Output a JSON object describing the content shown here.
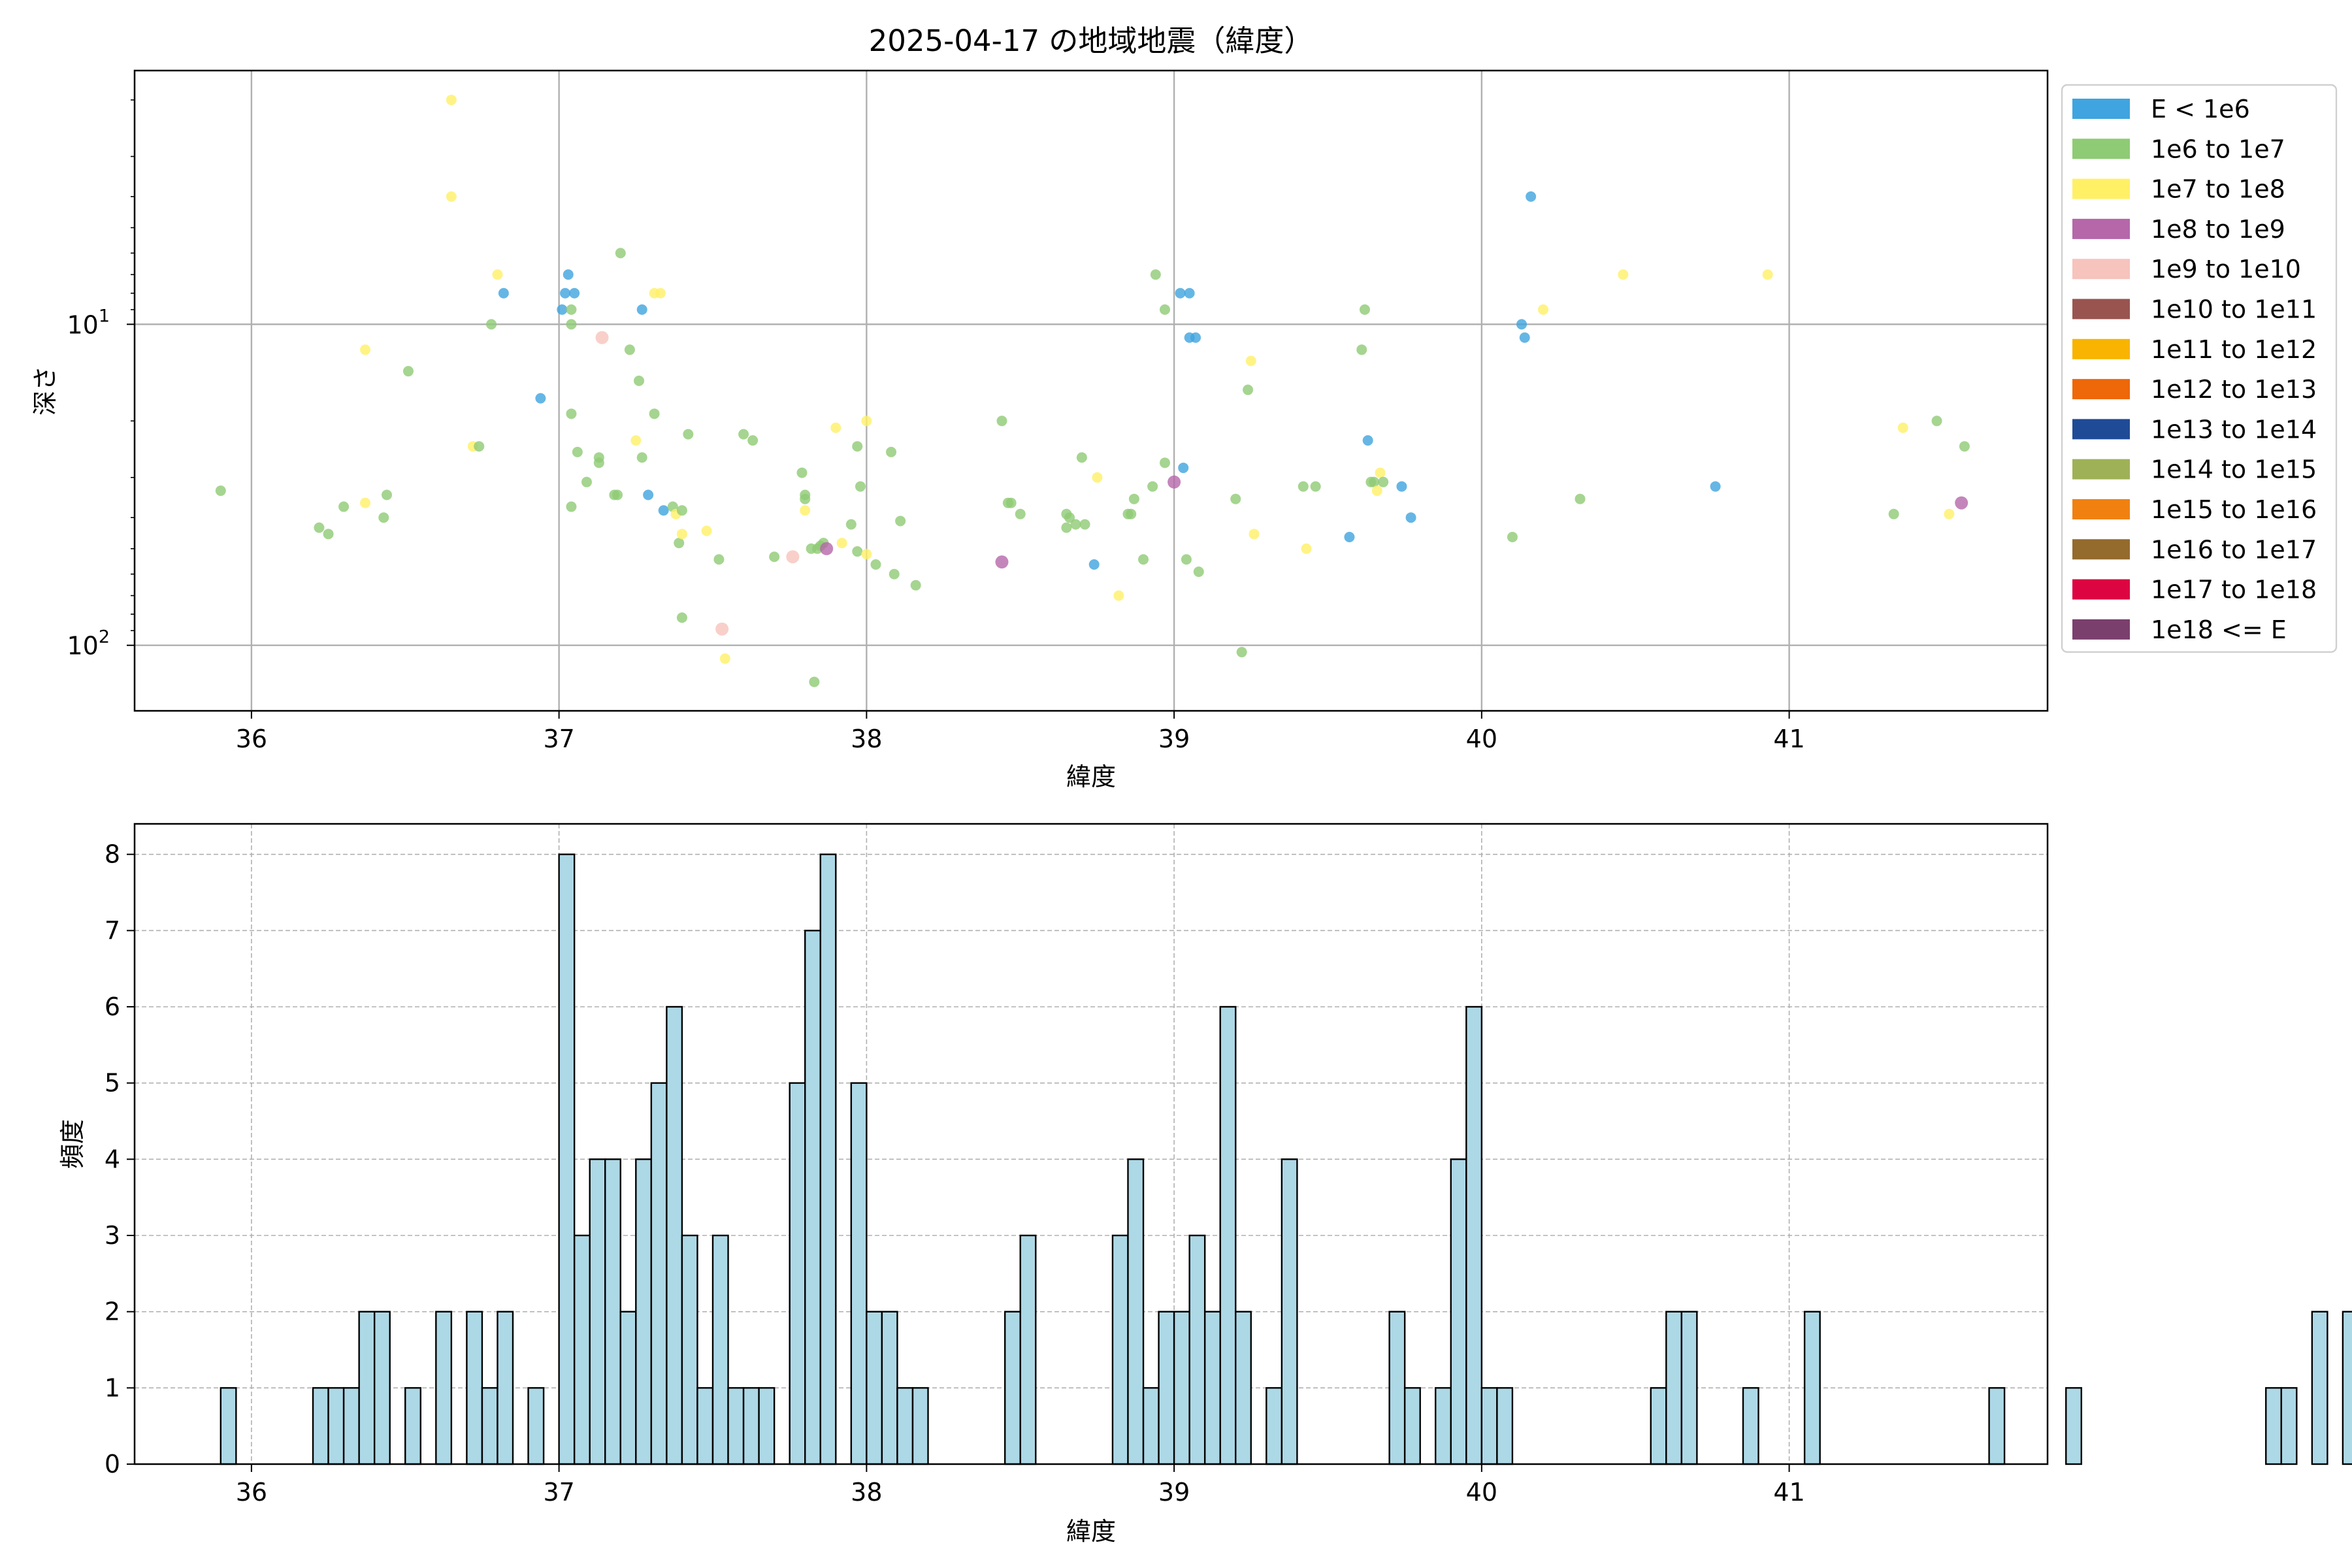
{
  "chart_data": [
    {
      "type": "scatter",
      "title": "2025-04-17 の地域地震（緯度）",
      "xlabel": "緯度",
      "ylabel": "深さ",
      "xlim": [
        35.62,
        41.84
      ],
      "ylim": [
        160,
        1.62
      ],
      "yscale": "log",
      "y_inverted": true,
      "grid": true,
      "x_ticks": [
        "36",
        "37",
        "38",
        "39",
        "40",
        "41"
      ],
      "y_ticks": [
        {
          "label": "10",
          "exp": "1"
        },
        {
          "label": "10",
          "exp": "2"
        }
      ],
      "legend_position": "outside-right",
      "legend": [
        {
          "label": "E < 1e6",
          "color": "#3fa4df"
        },
        {
          "label": "1e6 to 1e7",
          "color": "#8fcb74"
        },
        {
          "label": "1e7 to 1e8",
          "color": "#fff066"
        },
        {
          "label": "1e8 to 1e9",
          "color": "#b567aa"
        },
        {
          "label": "1e9 to 1e10",
          "color": "#f7c3bd"
        },
        {
          "label": "1e10 to 1e11",
          "color": "#995450"
        },
        {
          "label": "1e11 to 1e12",
          "color": "#f8b400"
        },
        {
          "label": "1e12 to 1e13",
          "color": "#ee6708"
        },
        {
          "label": "1e13 to 1e14",
          "color": "#1f4b96"
        },
        {
          "label": "1e14 to 1e15",
          "color": "#9fb157"
        },
        {
          "label": "1e15 to 1e16",
          "color": "#f08111"
        },
        {
          "label": "1e16 to 1e17",
          "color": "#946a2d"
        },
        {
          "label": "1e17 to 1e18",
          "color": "#dc0542"
        },
        {
          "label": "1e18 <= E",
          "color": "#7b3f6d"
        }
      ],
      "points": [
        {
          "x": 35.9,
          "y": 33,
          "c": 1
        },
        {
          "x": 36.22,
          "y": 43,
          "c": 1
        },
        {
          "x": 36.25,
          "y": 45,
          "c": 1
        },
        {
          "x": 36.3,
          "y": 37,
          "c": 1
        },
        {
          "x": 36.43,
          "y": 40,
          "c": 1
        },
        {
          "x": 36.44,
          "y": 34,
          "c": 1
        },
        {
          "x": 36.51,
          "y": 14,
          "c": 1
        },
        {
          "x": 36.37,
          "y": 12,
          "c": 2
        },
        {
          "x": 36.37,
          "y": 36,
          "c": 2
        },
        {
          "x": 36.65,
          "y": 2,
          "c": 2
        },
        {
          "x": 36.65,
          "y": 4,
          "c": 2
        },
        {
          "x": 36.72,
          "y": 24,
          "c": 2
        },
        {
          "x": 36.74,
          "y": 24,
          "c": 1
        },
        {
          "x": 36.78,
          "y": 10,
          "c": 1
        },
        {
          "x": 36.8,
          "y": 7,
          "c": 2
        },
        {
          "x": 36.82,
          "y": 8,
          "c": 0
        },
        {
          "x": 36.94,
          "y": 17,
          "c": 0
        },
        {
          "x": 37.01,
          "y": 9,
          "c": 0
        },
        {
          "x": 37.02,
          "y": 8,
          "c": 0
        },
        {
          "x": 37.03,
          "y": 7,
          "c": 0
        },
        {
          "x": 37.04,
          "y": 9,
          "c": 1
        },
        {
          "x": 37.04,
          "y": 10,
          "c": 1
        },
        {
          "x": 37.04,
          "y": 19,
          "c": 1
        },
        {
          "x": 37.04,
          "y": 37,
          "c": 1
        },
        {
          "x": 37.05,
          "y": 8,
          "c": 0
        },
        {
          "x": 37.06,
          "y": 25,
          "c": 1
        },
        {
          "x": 37.09,
          "y": 31,
          "c": 1
        },
        {
          "x": 37.13,
          "y": 27,
          "c": 1
        },
        {
          "x": 37.13,
          "y": 26,
          "c": 1
        },
        {
          "x": 37.14,
          "y": 11,
          "c": 4
        },
        {
          "x": 37.18,
          "y": 34,
          "c": 1
        },
        {
          "x": 37.19,
          "y": 34,
          "c": 1
        },
        {
          "x": 37.2,
          "y": 6,
          "c": 1
        },
        {
          "x": 37.23,
          "y": 12,
          "c": 1
        },
        {
          "x": 37.25,
          "y": 23,
          "c": 2
        },
        {
          "x": 37.26,
          "y": 15,
          "c": 1
        },
        {
          "x": 37.27,
          "y": 26,
          "c": 1
        },
        {
          "x": 37.27,
          "y": 9,
          "c": 0
        },
        {
          "x": 37.29,
          "y": 34,
          "c": 0
        },
        {
          "x": 37.31,
          "y": 8,
          "c": 2
        },
        {
          "x": 37.31,
          "y": 19,
          "c": 1
        },
        {
          "x": 37.33,
          "y": 8,
          "c": 2
        },
        {
          "x": 37.34,
          "y": 38,
          "c": 0
        },
        {
          "x": 37.37,
          "y": 37,
          "c": 1
        },
        {
          "x": 37.38,
          "y": 39,
          "c": 2
        },
        {
          "x": 37.39,
          "y": 48,
          "c": 1
        },
        {
          "x": 37.4,
          "y": 45,
          "c": 2
        },
        {
          "x": 37.4,
          "y": 38,
          "c": 1
        },
        {
          "x": 37.4,
          "y": 82,
          "c": 1
        },
        {
          "x": 37.42,
          "y": 22,
          "c": 1
        },
        {
          "x": 37.48,
          "y": 44,
          "c": 2
        },
        {
          "x": 37.52,
          "y": 54,
          "c": 1
        },
        {
          "x": 37.53,
          "y": 89,
          "c": 4
        },
        {
          "x": 37.54,
          "y": 110,
          "c": 2
        },
        {
          "x": 37.6,
          "y": 22,
          "c": 1
        },
        {
          "x": 37.63,
          "y": 23,
          "c": 1
        },
        {
          "x": 37.7,
          "y": 53,
          "c": 1
        },
        {
          "x": 37.76,
          "y": 53,
          "c": 4
        },
        {
          "x": 37.79,
          "y": 29,
          "c": 1
        },
        {
          "x": 37.8,
          "y": 34,
          "c": 1
        },
        {
          "x": 37.8,
          "y": 35,
          "c": 1
        },
        {
          "x": 37.8,
          "y": 38,
          "c": 2
        },
        {
          "x": 37.82,
          "y": 50,
          "c": 1
        },
        {
          "x": 37.83,
          "y": 130,
          "c": 1
        },
        {
          "x": 37.84,
          "y": 50,
          "c": 1
        },
        {
          "x": 37.85,
          "y": 49,
          "c": 1
        },
        {
          "x": 37.86,
          "y": 48,
          "c": 1
        },
        {
          "x": 37.87,
          "y": 50,
          "c": 3
        },
        {
          "x": 37.9,
          "y": 21,
          "c": 2
        },
        {
          "x": 37.92,
          "y": 48,
          "c": 2
        },
        {
          "x": 37.95,
          "y": 42,
          "c": 1
        },
        {
          "x": 37.97,
          "y": 24,
          "c": 1
        },
        {
          "x": 37.97,
          "y": 51,
          "c": 1
        },
        {
          "x": 37.98,
          "y": 32,
          "c": 1
        },
        {
          "x": 38.0,
          "y": 20,
          "c": 2
        },
        {
          "x": 38.0,
          "y": 52,
          "c": 2
        },
        {
          "x": 38.03,
          "y": 56,
          "c": 1
        },
        {
          "x": 38.08,
          "y": 25,
          "c": 1
        },
        {
          "x": 38.09,
          "y": 60,
          "c": 1
        },
        {
          "x": 38.11,
          "y": 41,
          "c": 1
        },
        {
          "x": 38.16,
          "y": 65,
          "c": 1
        },
        {
          "x": 38.44,
          "y": 20,
          "c": 1
        },
        {
          "x": 38.44,
          "y": 55,
          "c": 3
        },
        {
          "x": 38.46,
          "y": 36,
          "c": 1
        },
        {
          "x": 38.47,
          "y": 36,
          "c": 1
        },
        {
          "x": 38.5,
          "y": 39,
          "c": 1
        },
        {
          "x": 38.65,
          "y": 39,
          "c": 1
        },
        {
          "x": 38.65,
          "y": 43,
          "c": 1
        },
        {
          "x": 38.66,
          "y": 40,
          "c": 1
        },
        {
          "x": 38.68,
          "y": 42,
          "c": 1
        },
        {
          "x": 38.7,
          "y": 26,
          "c": 1
        },
        {
          "x": 38.71,
          "y": 42,
          "c": 1
        },
        {
          "x": 38.74,
          "y": 56,
          "c": 0
        },
        {
          "x": 38.75,
          "y": 30,
          "c": 2
        },
        {
          "x": 38.82,
          "y": 70,
          "c": 2
        },
        {
          "x": 38.85,
          "y": 39,
          "c": 1
        },
        {
          "x": 38.86,
          "y": 39,
          "c": 1
        },
        {
          "x": 38.87,
          "y": 35,
          "c": 1
        },
        {
          "x": 38.9,
          "y": 54,
          "c": 1
        },
        {
          "x": 38.93,
          "y": 32,
          "c": 1
        },
        {
          "x": 38.94,
          "y": 7,
          "c": 1
        },
        {
          "x": 38.97,
          "y": 27,
          "c": 1
        },
        {
          "x": 38.97,
          "y": 9,
          "c": 1
        },
        {
          "x": 39.0,
          "y": 31,
          "c": 3
        },
        {
          "x": 39.02,
          "y": 8,
          "c": 0
        },
        {
          "x": 39.03,
          "y": 28,
          "c": 0
        },
        {
          "x": 39.04,
          "y": 54,
          "c": 1
        },
        {
          "x": 39.05,
          "y": 8,
          "c": 0
        },
        {
          "x": 39.05,
          "y": 11,
          "c": 0
        },
        {
          "x": 39.07,
          "y": 11,
          "c": 0
        },
        {
          "x": 39.08,
          "y": 59,
          "c": 1
        },
        {
          "x": 39.2,
          "y": 35,
          "c": 1
        },
        {
          "x": 39.22,
          "y": 105,
          "c": 1
        },
        {
          "x": 39.24,
          "y": 16,
          "c": 1
        },
        {
          "x": 39.25,
          "y": 13,
          "c": 2
        },
        {
          "x": 39.26,
          "y": 45,
          "c": 2
        },
        {
          "x": 39.42,
          "y": 32,
          "c": 1
        },
        {
          "x": 39.43,
          "y": 50,
          "c": 2
        },
        {
          "x": 39.46,
          "y": 32,
          "c": 1
        },
        {
          "x": 39.57,
          "y": 46,
          "c": 0
        },
        {
          "x": 39.61,
          "y": 12,
          "c": 1
        },
        {
          "x": 39.62,
          "y": 9,
          "c": 1
        },
        {
          "x": 39.63,
          "y": 23,
          "c": 0
        },
        {
          "x": 39.64,
          "y": 31,
          "c": 1
        },
        {
          "x": 39.65,
          "y": 31,
          "c": 1
        },
        {
          "x": 39.66,
          "y": 33,
          "c": 2
        },
        {
          "x": 39.67,
          "y": 29,
          "c": 2
        },
        {
          "x": 39.68,
          "y": 31,
          "c": 1
        },
        {
          "x": 39.74,
          "y": 32,
          "c": 0
        },
        {
          "x": 39.77,
          "y": 40,
          "c": 0
        },
        {
          "x": 40.1,
          "y": 46,
          "c": 1
        },
        {
          "x": 40.13,
          "y": 10,
          "c": 0
        },
        {
          "x": 40.14,
          "y": 11,
          "c": 0
        },
        {
          "x": 40.16,
          "y": 4,
          "c": 0
        },
        {
          "x": 40.2,
          "y": 9,
          "c": 2
        },
        {
          "x": 40.32,
          "y": 35,
          "c": 1
        },
        {
          "x": 40.46,
          "y": 7,
          "c": 2
        },
        {
          "x": 40.76,
          "y": 32,
          "c": 0
        },
        {
          "x": 40.93,
          "y": 7,
          "c": 2
        },
        {
          "x": 41.34,
          "y": 39,
          "c": 1
        },
        {
          "x": 41.37,
          "y": 21,
          "c": 2
        },
        {
          "x": 41.48,
          "y": 20,
          "c": 1
        },
        {
          "x": 41.52,
          "y": 39,
          "c": 2
        },
        {
          "x": 41.57,
          "y": 24,
          "c": 1
        },
        {
          "x": 41.56,
          "y": 36,
          "c": 3
        }
      ]
    },
    {
      "type": "bar",
      "title": "",
      "xlabel": "緯度",
      "ylabel": "頻度",
      "xlim": [
        35.62,
        41.84
      ],
      "ylim": [
        0,
        8.4
      ],
      "grid": true,
      "bar_color": "#add8e6",
      "x_ticks": [
        "36",
        "37",
        "38",
        "39",
        "40",
        "41"
      ],
      "y_ticks": [
        "0",
        "1",
        "2",
        "3",
        "4",
        "5",
        "6",
        "7",
        "8"
      ],
      "bin_start": 35.9,
      "bin_width": 0.05,
      "values": [
        1,
        0,
        0,
        0,
        0,
        0,
        1,
        1,
        1,
        2,
        2,
        0,
        1,
        0,
        2,
        0,
        2,
        1,
        2,
        0,
        1,
        0,
        8,
        3,
        4,
        4,
        2,
        4,
        5,
        6,
        3,
        1,
        3,
        1,
        1,
        1,
        0,
        5,
        7,
        8,
        0,
        5,
        2,
        2,
        1,
        1,
        0,
        0,
        0,
        0,
        0,
        2,
        3,
        0,
        0,
        0,
        0,
        0,
        3,
        4,
        1,
        2,
        2,
        3,
        2,
        6,
        2,
        0,
        1,
        4,
        0,
        0,
        0,
        0,
        0,
        0,
        2,
        1,
        0,
        1,
        4,
        6,
        1,
        1,
        0,
        0,
        0,
        0,
        0,
        0,
        0,
        0,
        0,
        1,
        2,
        2,
        0,
        0,
        0,
        1,
        0,
        0,
        0,
        2,
        0,
        0,
        0,
        0,
        0,
        0,
        0,
        0,
        0,
        0,
        0,
        1,
        0,
        0,
        0,
        0,
        1,
        0,
        0,
        0,
        0,
        0,
        0,
        0,
        0,
        0,
        0,
        0,
        0,
        1,
        1,
        0,
        2,
        0,
        2
      ]
    }
  ]
}
